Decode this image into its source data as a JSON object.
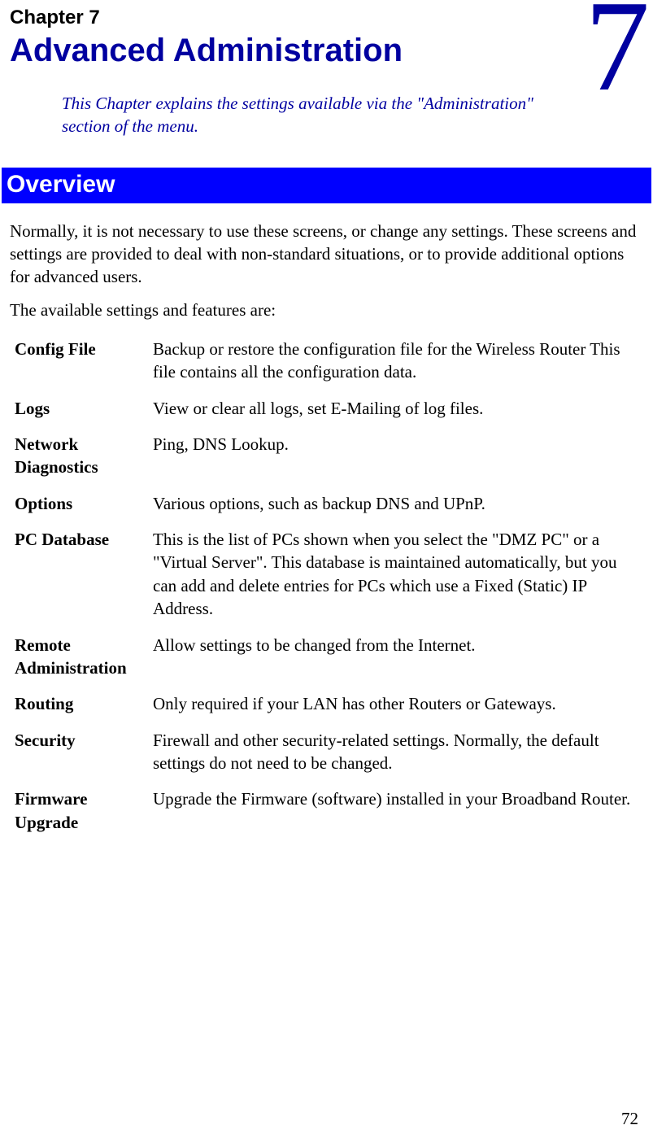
{
  "chapter": {
    "label": "Chapter 7",
    "title": "Advanced Administration",
    "number": "7",
    "intro": "This Chapter explains the settings available via the \"Administration\" section of the menu."
  },
  "section": {
    "header": "Overview",
    "para1": "Normally, it is not necessary to use these screens, or change any settings. These screens and settings are provided to deal with non-standard situations, or to provide additional options for advanced users.",
    "para2": "The available settings and features are:"
  },
  "features": [
    {
      "term": "Config File",
      "desc": "Backup or restore the configuration file for the Wireless Router This file contains all the configuration data."
    },
    {
      "term": "Logs",
      "desc": "View or clear all logs, set E-Mailing of log files."
    },
    {
      "term": "Network Diagnostics",
      "desc": "Ping, DNS Lookup."
    },
    {
      "term": "Options",
      "desc": "Various options, such as backup DNS and UPnP."
    },
    {
      "term": "PC Database",
      "desc": "This is the list of PCs shown when you select the \"DMZ PC\" or a \"Virtual Server\". This database is maintained automatically, but you can add and delete entries for PCs which use a Fixed (Static) IP Address."
    },
    {
      "term": "Remote Administration",
      "desc": "Allow settings to be changed from the Internet."
    },
    {
      "term": "Routing",
      "desc": "Only required if your LAN has other Routers or Gateways."
    },
    {
      "term": "Security",
      "desc": "Firewall and other security-related settings. Normally, the default settings do not need to be changed."
    },
    {
      "term": "Firmware Upgrade",
      "desc": "Upgrade the Firmware (software) installed in your Broadband Router."
    }
  ],
  "page_number": "72",
  "colors": {
    "heading_blue": "#0000A0",
    "section_bg": "#0000FF",
    "section_fg": "#ffffff",
    "body_text": "#000000",
    "page_bg": "#ffffff"
  },
  "typography": {
    "chapter_label_fontsize": 24,
    "chapter_title_fontsize": 40,
    "chapter_number_fontsize": 160,
    "intro_fontsize": 21,
    "section_header_fontsize": 30,
    "body_fontsize": 21
  }
}
